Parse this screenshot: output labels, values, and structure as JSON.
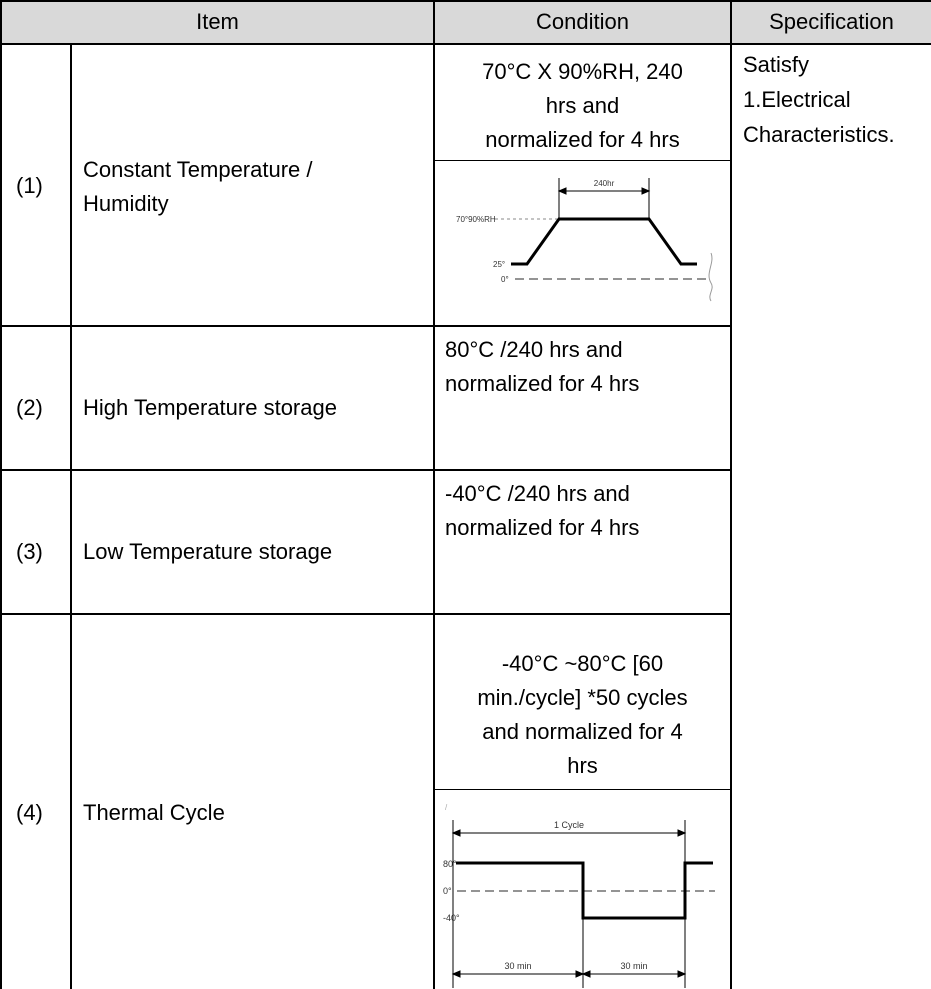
{
  "header": {
    "item": "Item",
    "condition": "Condition",
    "specification": "Specification"
  },
  "rows": [
    {
      "no": "(1)",
      "item": [
        "Constant Temperature /",
        "Humidity"
      ],
      "condition": [
        "70°C X 90%RH, 240",
        "hrs and",
        "normalized for 4 hrs"
      ],
      "diagram": {
        "duration": "240hr",
        "high_level": "70°90%RH",
        "low_level": "25°",
        "zero": "0°"
      }
    },
    {
      "no": "(2)",
      "item": [
        "High Temperature storage"
      ],
      "condition": [
        "80°C /240 hrs and",
        "normalized for 4 hrs"
      ]
    },
    {
      "no": "(3)",
      "item": [
        "Low Temperature storage"
      ],
      "condition": [
        "-40°C /240 hrs and",
        "normalized for 4 hrs"
      ]
    },
    {
      "no": "(4)",
      "item": [
        "Thermal Cycle"
      ],
      "condition": [
        "-40°C ~80°C [60",
        "min./cycle] *50 cycles",
        "and normalized for 4",
        "hrs"
      ],
      "diagram": {
        "cycle": "1 Cycle",
        "high": "80°",
        "zero": "0°",
        "low": "-40°",
        "half1": "30 min",
        "half2": "30 min"
      }
    }
  ],
  "specification": [
    "Satisfy",
    "1.Electrical",
    "Characteristics."
  ]
}
